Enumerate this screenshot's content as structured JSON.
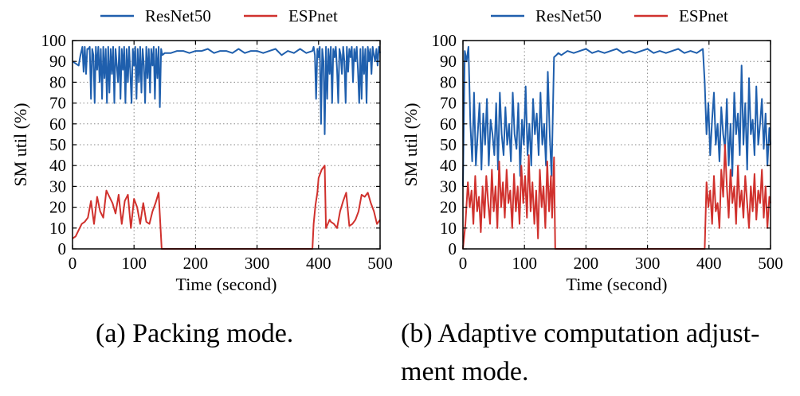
{
  "colors": {
    "resnet": "#1f5fad",
    "espnet": "#d0312d",
    "axis": "#000000",
    "grid": "#888888"
  },
  "captions": {
    "a": "(a) Packing mode.",
    "b_line1": "(b) Adaptive computation adjust-",
    "b_line2": "ment mode."
  },
  "chart_data": [
    {
      "type": "line",
      "xlabel": "Time (second)",
      "ylabel": "SM util (%)",
      "xlim": [
        0,
        500
      ],
      "ylim": [
        0,
        100
      ],
      "xticks": [
        0,
        100,
        200,
        300,
        400,
        500
      ],
      "yticks": [
        0,
        10,
        20,
        30,
        40,
        50,
        60,
        70,
        80,
        90,
        100
      ],
      "grid": true,
      "legend": "top",
      "series": [
        {
          "name": "ResNet50",
          "color": "#1f5fad",
          "x": [
            0,
            5,
            10,
            13,
            16,
            18,
            20,
            22,
            24,
            26,
            28,
            30,
            32,
            34,
            36,
            38,
            40,
            42,
            44,
            46,
            48,
            50,
            52,
            54,
            56,
            58,
            60,
            62,
            64,
            66,
            68,
            70,
            72,
            74,
            76,
            78,
            80,
            82,
            84,
            86,
            88,
            90,
            92,
            94,
            96,
            98,
            100,
            102,
            104,
            106,
            108,
            110,
            112,
            114,
            116,
            118,
            120,
            122,
            124,
            126,
            128,
            130,
            132,
            134,
            136,
            138,
            140,
            142,
            144,
            146,
            150,
            160,
            170,
            180,
            190,
            200,
            210,
            220,
            230,
            240,
            250,
            260,
            270,
            280,
            290,
            300,
            310,
            320,
            330,
            340,
            350,
            360,
            370,
            380,
            390,
            392,
            394,
            396,
            398,
            400,
            402,
            404,
            406,
            408,
            410,
            412,
            414,
            416,
            418,
            420,
            422,
            424,
            426,
            428,
            430,
            432,
            434,
            436,
            438,
            440,
            442,
            444,
            446,
            448,
            450,
            452,
            454,
            456,
            458,
            460,
            462,
            464,
            466,
            468,
            470,
            472,
            474,
            476,
            478,
            480,
            482,
            484,
            486,
            488,
            490,
            492,
            494,
            496,
            498,
            500
          ],
          "y": [
            90,
            89,
            88,
            93,
            97,
            85,
            97,
            84,
            96,
            96,
            97,
            72,
            96,
            93,
            70,
            97,
            86,
            97,
            80,
            96,
            72,
            97,
            82,
            96,
            70,
            97,
            75,
            96,
            84,
            97,
            70,
            96,
            88,
            80,
            97,
            72,
            96,
            86,
            97,
            70,
            96,
            80,
            97,
            84,
            70,
            96,
            88,
            97,
            72,
            96,
            80,
            97,
            75,
            96,
            88,
            70,
            97,
            82,
            96,
            75,
            96,
            88,
            97,
            72,
            96,
            82,
            97,
            68,
            96,
            93,
            94,
            94,
            95,
            95,
            94,
            95,
            95,
            96,
            94,
            95,
            95,
            94,
            96,
            94,
            95,
            95,
            94,
            95,
            96,
            93,
            95,
            94,
            96,
            94,
            95,
            97,
            93,
            72,
            96,
            92,
            97,
            60,
            96,
            90,
            55,
            97,
            72,
            96,
            84,
            97,
            70,
            96,
            92,
            97,
            86,
            70,
            96,
            93,
            84,
            97,
            90,
            70,
            97,
            85,
            96,
            92,
            97,
            80,
            96,
            90,
            97,
            86,
            70,
            96,
            72,
            97,
            84,
            96,
            70,
            97,
            90,
            96,
            84,
            97,
            93,
            90,
            96,
            88,
            97,
            94
          ]
        },
        {
          "name": "ESPnet",
          "color": "#d0312d",
          "x": [
            0,
            5,
            10,
            15,
            20,
            25,
            30,
            35,
            40,
            45,
            50,
            55,
            60,
            65,
            70,
            75,
            80,
            85,
            90,
            95,
            100,
            105,
            110,
            115,
            120,
            125,
            130,
            135,
            140,
            145,
            146,
            150,
            200,
            250,
            300,
            350,
            390,
            392,
            395,
            398,
            400,
            405,
            410,
            412,
            415,
            418,
            420,
            425,
            430,
            435,
            440,
            445,
            450,
            455,
            460,
            465,
            470,
            475,
            480,
            485,
            490,
            495,
            500
          ],
          "y": [
            5,
            6,
            9,
            12,
            13,
            15,
            23,
            12,
            25,
            18,
            15,
            28,
            25,
            22,
            17,
            26,
            12,
            23,
            26,
            10,
            24,
            20,
            12,
            22,
            13,
            12,
            18,
            22,
            27,
            0,
            0,
            0,
            0,
            0,
            0,
            0,
            0,
            12,
            21,
            27,
            34,
            38,
            40,
            10,
            12,
            14,
            13,
            12,
            10,
            18,
            23,
            27,
            11,
            12,
            14,
            18,
            26,
            25,
            27,
            22,
            18,
            12,
            14
          ]
        }
      ]
    },
    {
      "type": "line",
      "xlabel": "Time (second)",
      "ylabel": "SM util (%)",
      "xlim": [
        0,
        500
      ],
      "ylim": [
        0,
        100
      ],
      "xticks": [
        0,
        100,
        200,
        300,
        400,
        500
      ],
      "yticks": [
        0,
        10,
        20,
        30,
        40,
        50,
        60,
        70,
        80,
        90,
        100
      ],
      "grid": true,
      "legend": "top",
      "series": [
        {
          "name": "ResNet50",
          "color": "#1f5fad",
          "x": [
            0,
            3,
            6,
            9,
            12,
            15,
            18,
            21,
            24,
            27,
            30,
            33,
            36,
            39,
            42,
            45,
            48,
            51,
            54,
            57,
            60,
            63,
            66,
            69,
            72,
            75,
            78,
            81,
            84,
            87,
            90,
            93,
            96,
            99,
            102,
            105,
            108,
            111,
            114,
            117,
            120,
            123,
            126,
            129,
            132,
            135,
            138,
            141,
            144,
            148,
            152,
            155,
            160,
            170,
            180,
            190,
            200,
            210,
            220,
            230,
            240,
            250,
            260,
            270,
            280,
            290,
            300,
            310,
            320,
            330,
            340,
            350,
            360,
            370,
            380,
            390,
            393,
            396,
            399,
            402,
            405,
            408,
            411,
            414,
            417,
            420,
            423,
            426,
            429,
            432,
            435,
            438,
            441,
            444,
            447,
            450,
            453,
            456,
            459,
            462,
            465,
            468,
            471,
            474,
            477,
            480,
            483,
            486,
            489,
            492,
            495,
            498,
            500
          ],
          "y": [
            30,
            95,
            90,
            97,
            60,
            42,
            75,
            40,
            55,
            70,
            38,
            65,
            50,
            72,
            40,
            62,
            55,
            45,
            70,
            38,
            75,
            55,
            45,
            68,
            50,
            60,
            42,
            75,
            55,
            48,
            70,
            35,
            62,
            50,
            78,
            45,
            60,
            40,
            72,
            55,
            65,
            45,
            75,
            50,
            60,
            40,
            85,
            55,
            35,
            92,
            93,
            94,
            93,
            95,
            94,
            95,
            96,
            94,
            95,
            94,
            95,
            96,
            94,
            95,
            94,
            95,
            96,
            94,
            95,
            94,
            95,
            96,
            94,
            95,
            94,
            96,
            80,
            55,
            70,
            45,
            62,
            75,
            50,
            60,
            42,
            68,
            55,
            48,
            72,
            40,
            60,
            35,
            75,
            55,
            65,
            45,
            88,
            50,
            70,
            38,
            82,
            55,
            62,
            45,
            78,
            50,
            60,
            72,
            48,
            65,
            40,
            58,
            50
          ]
        },
        {
          "name": "ESPnet",
          "color": "#d0312d",
          "x": [
            0,
            4,
            8,
            11,
            14,
            17,
            20,
            23,
            26,
            29,
            32,
            35,
            38,
            41,
            44,
            47,
            50,
            53,
            56,
            59,
            62,
            65,
            68,
            71,
            74,
            77,
            80,
            83,
            86,
            89,
            92,
            95,
            98,
            101,
            104,
            107,
            110,
            113,
            116,
            119,
            122,
            125,
            128,
            131,
            134,
            137,
            140,
            143,
            145,
            148,
            150,
            200,
            250,
            300,
            350,
            390,
            393,
            396,
            399,
            402,
            405,
            408,
            411,
            414,
            417,
            420,
            423,
            426,
            429,
            432,
            435,
            438,
            441,
            444,
            447,
            450,
            453,
            456,
            459,
            462,
            465,
            468,
            471,
            474,
            477,
            480,
            483,
            486,
            489,
            492,
            495,
            498,
            500
          ],
          "y": [
            0,
            12,
            32,
            20,
            28,
            12,
            35,
            18,
            25,
            8,
            30,
            15,
            35,
            22,
            12,
            38,
            18,
            30,
            10,
            42,
            20,
            32,
            15,
            38,
            22,
            28,
            10,
            36,
            18,
            30,
            12,
            40,
            22,
            35,
            15,
            45,
            18,
            32,
            12,
            28,
            5,
            38,
            20,
            30,
            10,
            42,
            18,
            35,
            15,
            44,
            0,
            0,
            0,
            0,
            0,
            0,
            0,
            32,
            20,
            28,
            12,
            35,
            18,
            22,
            10,
            38,
            25,
            50,
            30,
            15,
            38,
            22,
            30,
            12,
            40,
            20,
            28,
            15,
            35,
            22,
            10,
            30,
            18,
            36,
            14,
            28,
            22,
            38,
            15,
            30,
            10,
            25,
            22
          ]
        }
      ]
    }
  ]
}
